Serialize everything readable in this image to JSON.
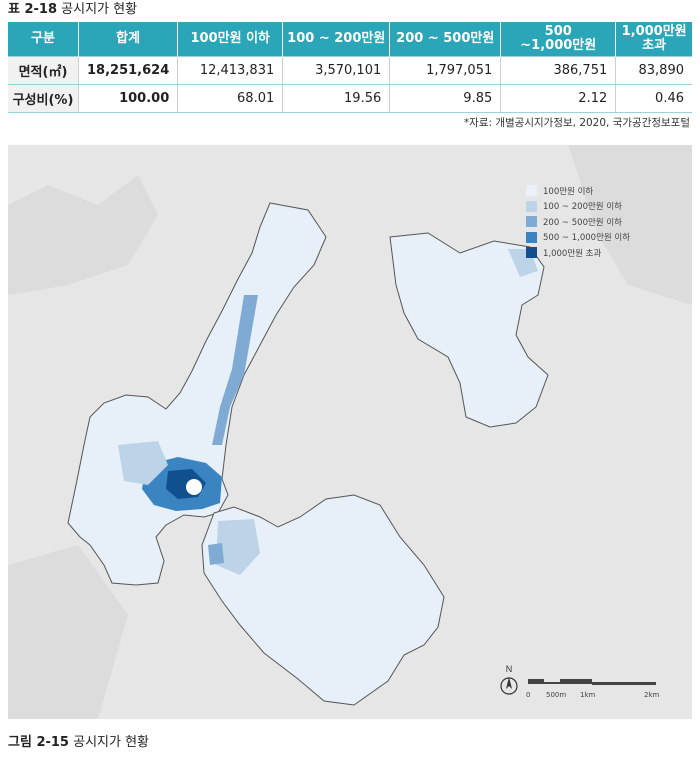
{
  "table_caption": {
    "number": "표 2-18",
    "title": "공시지가 현황"
  },
  "table": {
    "headers": [
      "구분",
      "합계",
      "100만원 이하",
      "100 ~ 200만원",
      "200 ~ 500만원",
      "500\n~1,000만원",
      "1,000만원 초과"
    ],
    "rows": [
      {
        "label": "면적(㎡)",
        "cells": [
          "18,251,624",
          "12,413,831",
          "3,570,101",
          "1,797,051",
          "386,751",
          "83,890"
        ]
      },
      {
        "label": "구성비(%)",
        "cells": [
          "100.00",
          "68.01",
          "19.56",
          "9.85",
          "2.12",
          "0.46"
        ]
      }
    ]
  },
  "source": "*자료: 개별공시지가정보, 2020, 국가공간정보포털",
  "legend": [
    {
      "label": "100만원 이하",
      "color": "#eaf1f8"
    },
    {
      "label": "100 ~ 200만원 이하",
      "color": "#bcd3e8"
    },
    {
      "label": "200 ~ 500만원 이하",
      "color": "#7eaad3"
    },
    {
      "label": "500 ~ 1,000만원 이하",
      "color": "#3a84c1"
    },
    {
      "label": "1,000만원 초과",
      "color": "#11508f"
    }
  ],
  "north_label": "N",
  "scale_labels": [
    "0",
    "500m",
    "1km",
    "2km"
  ],
  "figure_caption": {
    "number": "그림 2-15",
    "title": "공시지가 현황"
  }
}
